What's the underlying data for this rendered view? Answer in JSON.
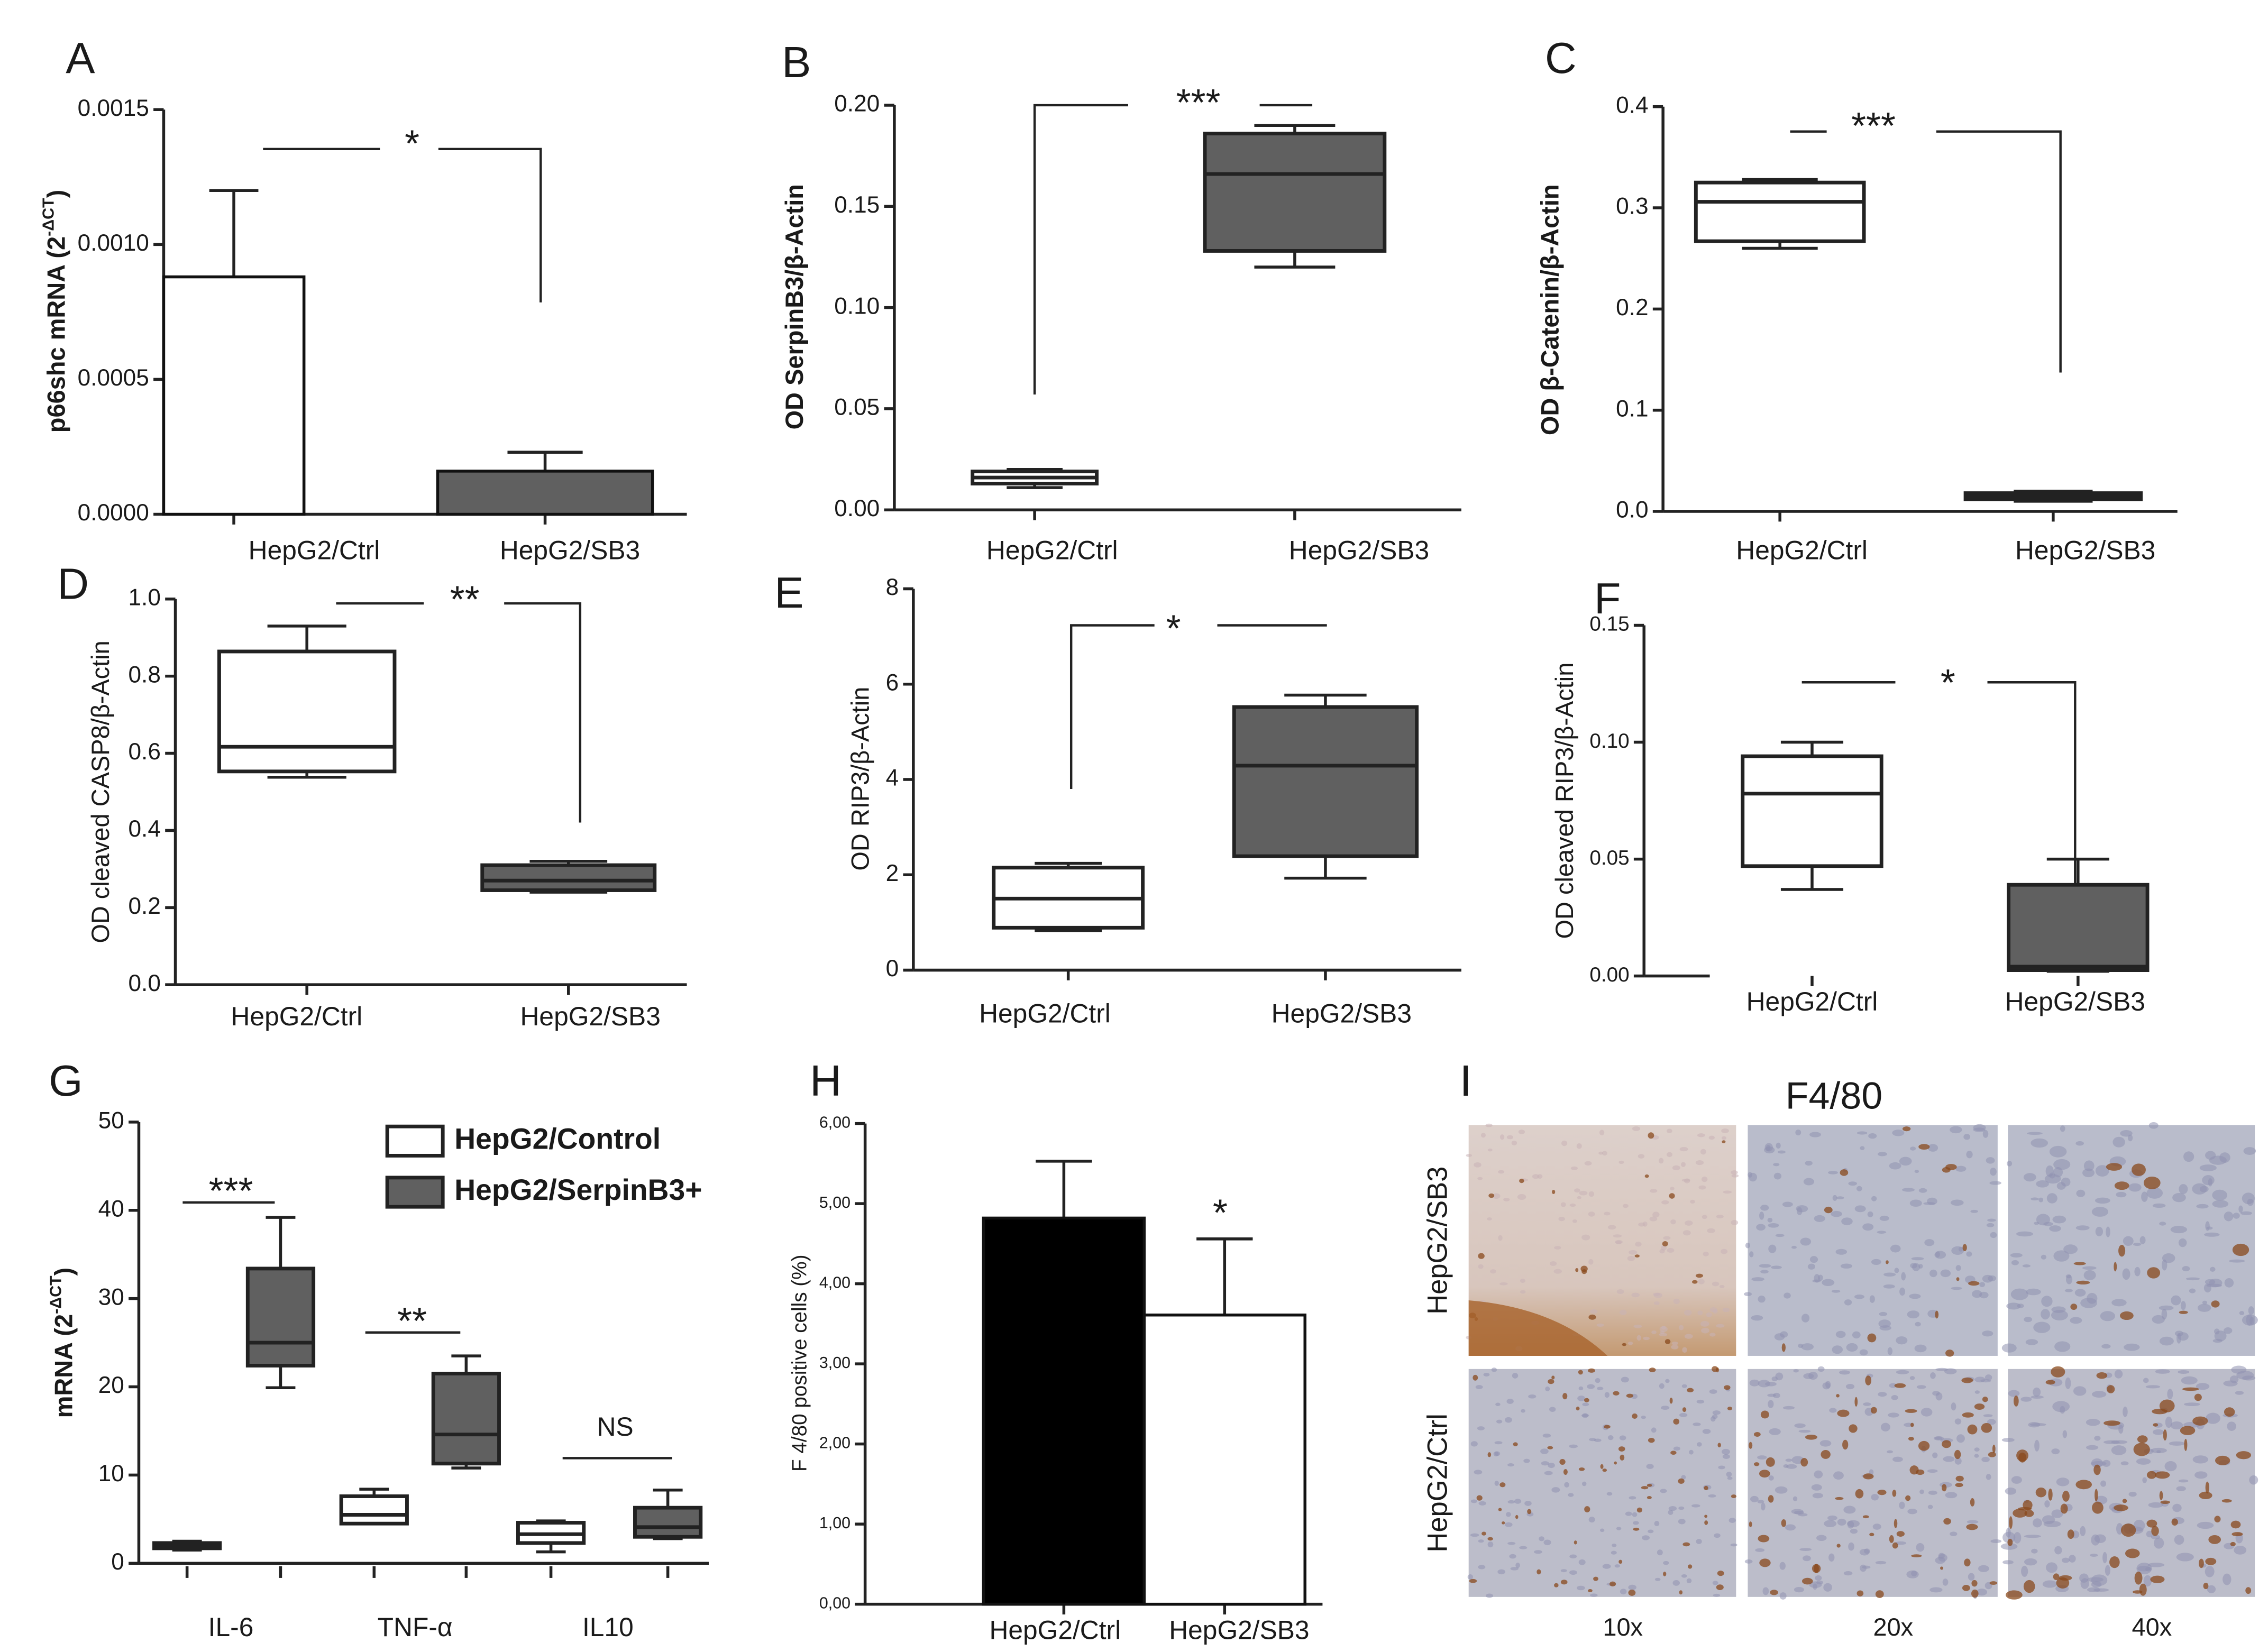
{
  "chart_data": [
    {
      "panel": "A",
      "type": "bar",
      "ylabel": [
        "p66shc mRNA (2",
        "-ΔCT",
        ")"
      ],
      "categories": [
        "HepG2/Ctrl",
        "HepG2/SB3"
      ],
      "values": [
        0.00088,
        0.00016
      ],
      "errors": [
        0.00032,
        7e-05
      ],
      "colors": [
        "#ffffff",
        "#606060"
      ],
      "ylim": [
        0,
        0.0015
      ],
      "yticks": [
        {
          "value": 0,
          "label": "0.0000"
        },
        0.0005,
        {
          "value": 0.001,
          "label": "0.0010"
        },
        0.0015
      ],
      "annotations": [
        "*"
      ]
    },
    {
      "panel": "B",
      "type": "box",
      "ylabel": "OD SerpinB3/β-Actin",
      "categories": [
        "HepG2/Ctrl",
        "HepG2/SB3"
      ],
      "series": [
        {
          "colors": [
            "#ffffff",
            "#606060"
          ],
          "min": [
            0.011,
            0.12
          ],
          "q1": [
            0.013,
            0.128
          ],
          "median": [
            0.016,
            0.166
          ],
          "q3": [
            0.019,
            0.186
          ],
          "max": [
            0.02,
            0.19
          ]
        }
      ],
      "ylim": [
        0,
        0.2
      ],
      "yticks": [
        {
          "value": 0,
          "label": "0.00"
        },
        0.05,
        {
          "value": 0.1,
          "label": "0.10"
        },
        0.15,
        {
          "value": 0.2,
          "label": "0.20"
        }
      ],
      "annotations": [
        "***"
      ]
    },
    {
      "panel": "C",
      "type": "box",
      "ylabel": "OD β-Catenin/β-Actin",
      "categories": [
        "HepG2/Ctrl",
        "HepG2/SB3"
      ],
      "series": [
        {
          "colors": [
            "#ffffff",
            "#606060"
          ],
          "min": [
            0.26,
            0.01
          ],
          "q1": [
            0.267,
            0.012
          ],
          "median": [
            0.306,
            0.015
          ],
          "q3": [
            0.325,
            0.018
          ],
          "max": [
            0.328,
            0.02
          ]
        }
      ],
      "ylim": [
        0,
        0.4
      ],
      "yticks": [
        {
          "value": 0,
          "label": "0.0"
        },
        0.1,
        0.2,
        0.3,
        0.4
      ],
      "annotations": [
        "***"
      ]
    },
    {
      "panel": "D",
      "type": "box",
      "ylabel": "OD cleaved CASP8/β-Actin",
      "categories": [
        "HepG2/Ctrl",
        "HepG2/SB3"
      ],
      "series": [
        {
          "colors": [
            "#ffffff",
            "#606060"
          ],
          "min": [
            0.538,
            0.24
          ],
          "q1": [
            0.553,
            0.245
          ],
          "median": [
            0.617,
            0.27
          ],
          "q3": [
            0.864,
            0.31
          ],
          "max": [
            0.93,
            0.32
          ]
        }
      ],
      "ylim": [
        0,
        1
      ],
      "yticks": [
        {
          "value": 0,
          "label": "0.0"
        },
        0.2,
        0.4,
        0.6,
        0.8,
        {
          "value": 1,
          "label": "1.0"
        }
      ],
      "annotations": [
        "**"
      ]
    },
    {
      "panel": "E",
      "type": "box",
      "ylabel": "OD RIP3/β-Actin",
      "categories": [
        "HepG2/Ctrl",
        "HepG2/SB3"
      ],
      "series": [
        {
          "colors": [
            "#ffffff",
            "#606060"
          ],
          "min": [
            0.83,
            1.93
          ],
          "q1": [
            0.89,
            2.39
          ],
          "median": [
            1.5,
            4.29
          ],
          "q3": [
            2.15,
            5.52
          ],
          "max": [
            2.24,
            5.77
          ]
        }
      ],
      "ylim": [
        0,
        8
      ],
      "yticks": [
        0,
        2,
        4,
        6,
        8
      ],
      "annotations": [
        "*"
      ]
    },
    {
      "panel": "F",
      "type": "box",
      "ylabel": "OD cleaved RIP3/β-Actin",
      "categories": [
        "HepG2/Ctrl",
        "HepG2/SB3"
      ],
      "series": [
        {
          "colors": [
            "#ffffff",
            "#606060"
          ],
          "min": [
            0.037,
            0.002
          ],
          "q1": [
            0.047,
            0.0025
          ],
          "median": [
            0.078,
            0.004
          ],
          "q3": [
            0.094,
            0.039
          ],
          "max": [
            0.1,
            0.05
          ]
        }
      ],
      "ylim": [
        0,
        0.15
      ],
      "yticks": [
        {
          "value": 0,
          "label": "0.00"
        },
        0.05,
        {
          "value": 0.1,
          "label": "0.10"
        },
        0.15
      ],
      "annotations": [
        "*"
      ]
    },
    {
      "panel": "G",
      "type": "box",
      "ylabel": [
        "mRNA (2",
        "-ΔCT",
        ")"
      ],
      "categories": [
        "IL-6",
        "TNF-α",
        "IL10"
      ],
      "series": [
        {
          "name": "HepG2/Control",
          "color": "#ffffff",
          "min": [
            1.5,
            4.5,
            1.3
          ],
          "q1": [
            1.7,
            4.5,
            2.3
          ],
          "median": [
            2.0,
            5.5,
            3.3
          ],
          "q3": [
            2.3,
            7.6,
            4.6
          ],
          "max": [
            2.5,
            8.4,
            4.8
          ]
        },
        {
          "name": "HepG2/SerpinB3+",
          "color": "#606060",
          "min": [
            19.9,
            10.8,
            2.8
          ],
          "q1": [
            22.4,
            11.3,
            3.0
          ],
          "median": [
            25,
            14.6,
            4.1
          ],
          "q3": [
            33.4,
            21.5,
            6.3
          ],
          "max": [
            39.2,
            23.5,
            8.3
          ]
        }
      ],
      "ylim": [
        0,
        50
      ],
      "yticks": [
        0,
        10,
        20,
        30,
        40,
        50
      ],
      "annotations": [
        "***",
        "**",
        "NS"
      ]
    },
    {
      "panel": "H",
      "type": "bar",
      "ylabel": "F 4/80 positive cells (%)",
      "categories": [
        "HepG2/Ctrl",
        "HepG2/SB3"
      ],
      "values": [
        4.82,
        3.61
      ],
      "errors": [
        0.71,
        0.95
      ],
      "colors": [
        "#000000",
        "#ffffff"
      ],
      "ylim": [
        0,
        6
      ],
      "yticks": [
        {
          "value": 0,
          "label": "0,00"
        },
        {
          "value": 1,
          "label": "1,00"
        },
        {
          "value": 2,
          "label": "2,00"
        },
        {
          "value": 3,
          "label": "3,00"
        },
        {
          "value": 4,
          "label": "4,00"
        },
        {
          "value": 5,
          "label": "5,00"
        },
        {
          "value": 6,
          "label": "6,00"
        }
      ],
      "annotations": [
        "*"
      ]
    }
  ],
  "image_panel": {
    "label": "I",
    "title": "F4/80",
    "rows": [
      "HepG2/SB3",
      "HepG2/Ctrl"
    ],
    "columns": [
      "10x",
      "20x",
      "40x"
    ]
  }
}
